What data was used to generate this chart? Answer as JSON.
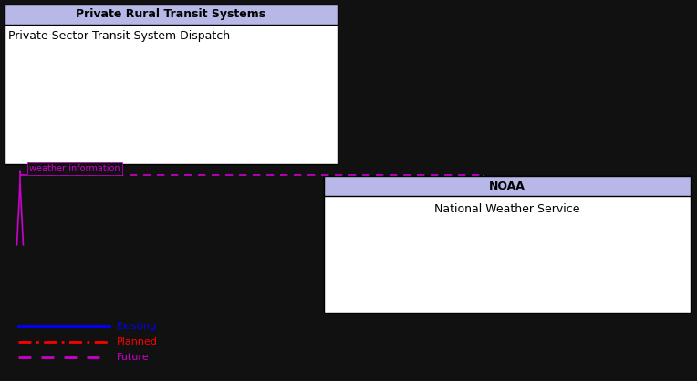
{
  "bg_color": "#111111",
  "box1_header_color": "#b8b8e8",
  "box1_header_text": "Private Rural Transit Systems",
  "box1_body_color": "#ffffff",
  "box1_body_text": "Private Sector Transit System Dispatch",
  "box2_header_color": "#b8b8e8",
  "box2_header_text": "NOAA",
  "box2_body_color": "#ffffff",
  "box2_body_text": "National Weather Service",
  "existing_color": "#0000ff",
  "planned_color": "#ff0000",
  "future_color": "#cc00cc",
  "label_color": "#cc00cc",
  "border_color": "#000000",
  "white": "#ffffff",
  "black": "#000000"
}
